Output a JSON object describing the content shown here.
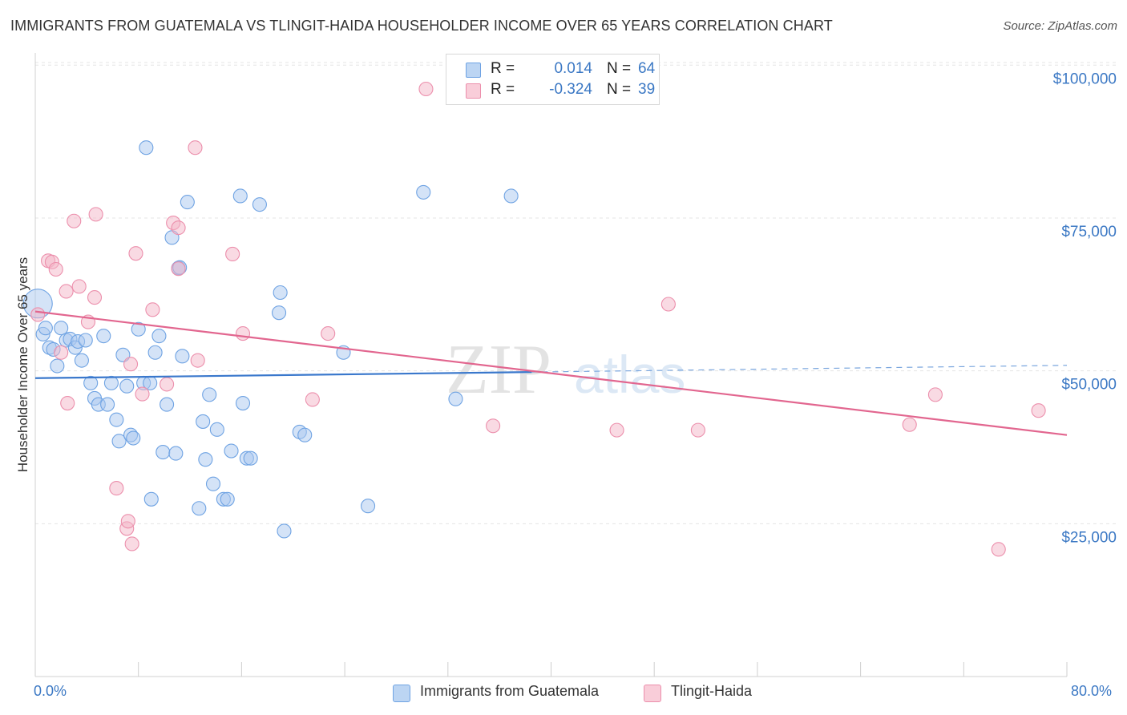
{
  "header": {
    "title": "IMMIGRANTS FROM GUATEMALA VS TLINGIT-HAIDA HOUSEHOLDER INCOME OVER 65 YEARS CORRELATION CHART",
    "source": "Source: ZipAtlas.com"
  },
  "watermark": {
    "zip": "ZIP",
    "atlas": "atlas"
  },
  "stats": {
    "rows": [
      {
        "r_label": "R =",
        "r_value": "0.014",
        "n_label": "N =",
        "n_value": "64",
        "color": "#a9c8ef"
      },
      {
        "r_label": "R =",
        "r_value": "-0.324",
        "n_label": "N =",
        "n_value": "39",
        "color": "#f4b6c8"
      }
    ]
  },
  "legend": {
    "items": [
      {
        "label": "Immigrants from Guatemala",
        "color": "#a9c8ef"
      },
      {
        "label": "Tlingit-Haida",
        "color": "#f4b6c8"
      }
    ]
  },
  "chart_data": {
    "type": "scatter",
    "title": "IMMIGRANTS FROM GUATEMALA VS TLINGIT-HAIDA HOUSEHOLDER INCOME OVER 65 YEARS CORRELATION CHART",
    "xlabel": "",
    "ylabel": "Householder Income Over 65 years",
    "xlim": [
      0,
      80
    ],
    "ylim": [
      0,
      102000
    ],
    "x_tick_labels": [
      "0.0%",
      "80.0%"
    ],
    "y_ticks": [
      25000,
      50000,
      75000,
      100000
    ],
    "y_tick_labels": [
      "$25,000",
      "$50,000",
      "$75,000",
      "$100,000"
    ],
    "grid": true,
    "series": [
      {
        "name": "Immigrants from Guatemala",
        "color": "#6fa3e3",
        "fill": "#a9c8ef",
        "trend": {
          "x0": 0,
          "y0": 48800,
          "x1": 38.5,
          "y1": 49800,
          "dashed_to_x": 80,
          "dashed_to_y": 50900
        },
        "points": [
          [
            0.2,
            61000
          ],
          [
            0.6,
            56000
          ],
          [
            0.8,
            57000
          ],
          [
            1.1,
            53800
          ],
          [
            1.4,
            53500
          ],
          [
            1.7,
            50800
          ],
          [
            2.0,
            57000
          ],
          [
            2.4,
            55000
          ],
          [
            2.7,
            55200
          ],
          [
            3.1,
            53800
          ],
          [
            3.3,
            54800
          ],
          [
            3.6,
            51700
          ],
          [
            3.9,
            55000
          ],
          [
            4.3,
            48000
          ],
          [
            4.6,
            45500
          ],
          [
            4.9,
            44500
          ],
          [
            5.3,
            55700
          ],
          [
            5.6,
            44500
          ],
          [
            5.9,
            48000
          ],
          [
            6.3,
            42000
          ],
          [
            6.5,
            38500
          ],
          [
            6.8,
            52600
          ],
          [
            7.1,
            47500
          ],
          [
            7.4,
            39500
          ],
          [
            7.6,
            39000
          ],
          [
            8.0,
            56800
          ],
          [
            8.4,
            48000
          ],
          [
            8.6,
            86500
          ],
          [
            9.0,
            29000
          ],
          [
            9.3,
            53000
          ],
          [
            9.6,
            55700
          ],
          [
            9.9,
            36700
          ],
          [
            10.2,
            44500
          ],
          [
            10.6,
            71800
          ],
          [
            10.9,
            36500
          ],
          [
            11.1,
            66800
          ],
          [
            11.4,
            52400
          ],
          [
            11.8,
            77600
          ],
          [
            12.7,
            27500
          ],
          [
            13.0,
            41700
          ],
          [
            13.2,
            35500
          ],
          [
            13.5,
            46100
          ],
          [
            13.8,
            31500
          ],
          [
            14.1,
            40400
          ],
          [
            14.6,
            29000
          ],
          [
            14.9,
            29000
          ],
          [
            15.2,
            36900
          ],
          [
            15.9,
            78600
          ],
          [
            16.1,
            44700
          ],
          [
            16.4,
            35700
          ],
          [
            16.7,
            35700
          ],
          [
            17.4,
            77200
          ],
          [
            19.0,
            62800
          ],
          [
            18.9,
            59500
          ],
          [
            19.3,
            23800
          ],
          [
            20.5,
            40000
          ],
          [
            20.9,
            39500
          ],
          [
            23.9,
            53000
          ],
          [
            25.8,
            27900
          ],
          [
            30.1,
            79200
          ],
          [
            32.6,
            45400
          ],
          [
            36.9,
            78600
          ],
          [
            11.2,
            66900
          ],
          [
            8.9,
            48000
          ]
        ]
      },
      {
        "name": "Tlingit-Haida",
        "color": "#ec8fac",
        "fill": "#f4b6c8",
        "trend": {
          "x0": 0,
          "y0": 59700,
          "x1": 80,
          "y1": 39500
        },
        "points": [
          [
            0.2,
            59200
          ],
          [
            1.0,
            68000
          ],
          [
            1.3,
            67800
          ],
          [
            1.6,
            66600
          ],
          [
            2.0,
            53000
          ],
          [
            2.4,
            63000
          ],
          [
            2.5,
            44700
          ],
          [
            3.0,
            74500
          ],
          [
            3.4,
            63800
          ],
          [
            4.1,
            58000
          ],
          [
            4.6,
            62000
          ],
          [
            4.7,
            75600
          ],
          [
            6.3,
            30800
          ],
          [
            7.1,
            24200
          ],
          [
            7.2,
            25400
          ],
          [
            7.4,
            51100
          ],
          [
            7.5,
            21700
          ],
          [
            7.8,
            69200
          ],
          [
            8.3,
            46200
          ],
          [
            9.1,
            60000
          ],
          [
            10.2,
            47800
          ],
          [
            10.7,
            74200
          ],
          [
            11.1,
            73400
          ],
          [
            11.1,
            66700
          ],
          [
            12.4,
            86500
          ],
          [
            12.6,
            51700
          ],
          [
            15.3,
            69100
          ],
          [
            16.1,
            56100
          ],
          [
            21.5,
            45300
          ],
          [
            22.7,
            56100
          ],
          [
            30.3,
            96100
          ],
          [
            35.5,
            41000
          ],
          [
            45.1,
            40300
          ],
          [
            49.1,
            60900
          ],
          [
            51.4,
            40300
          ],
          [
            67.8,
            41200
          ],
          [
            69.8,
            46100
          ],
          [
            74.7,
            20800
          ],
          [
            77.8,
            43500
          ]
        ]
      }
    ]
  }
}
